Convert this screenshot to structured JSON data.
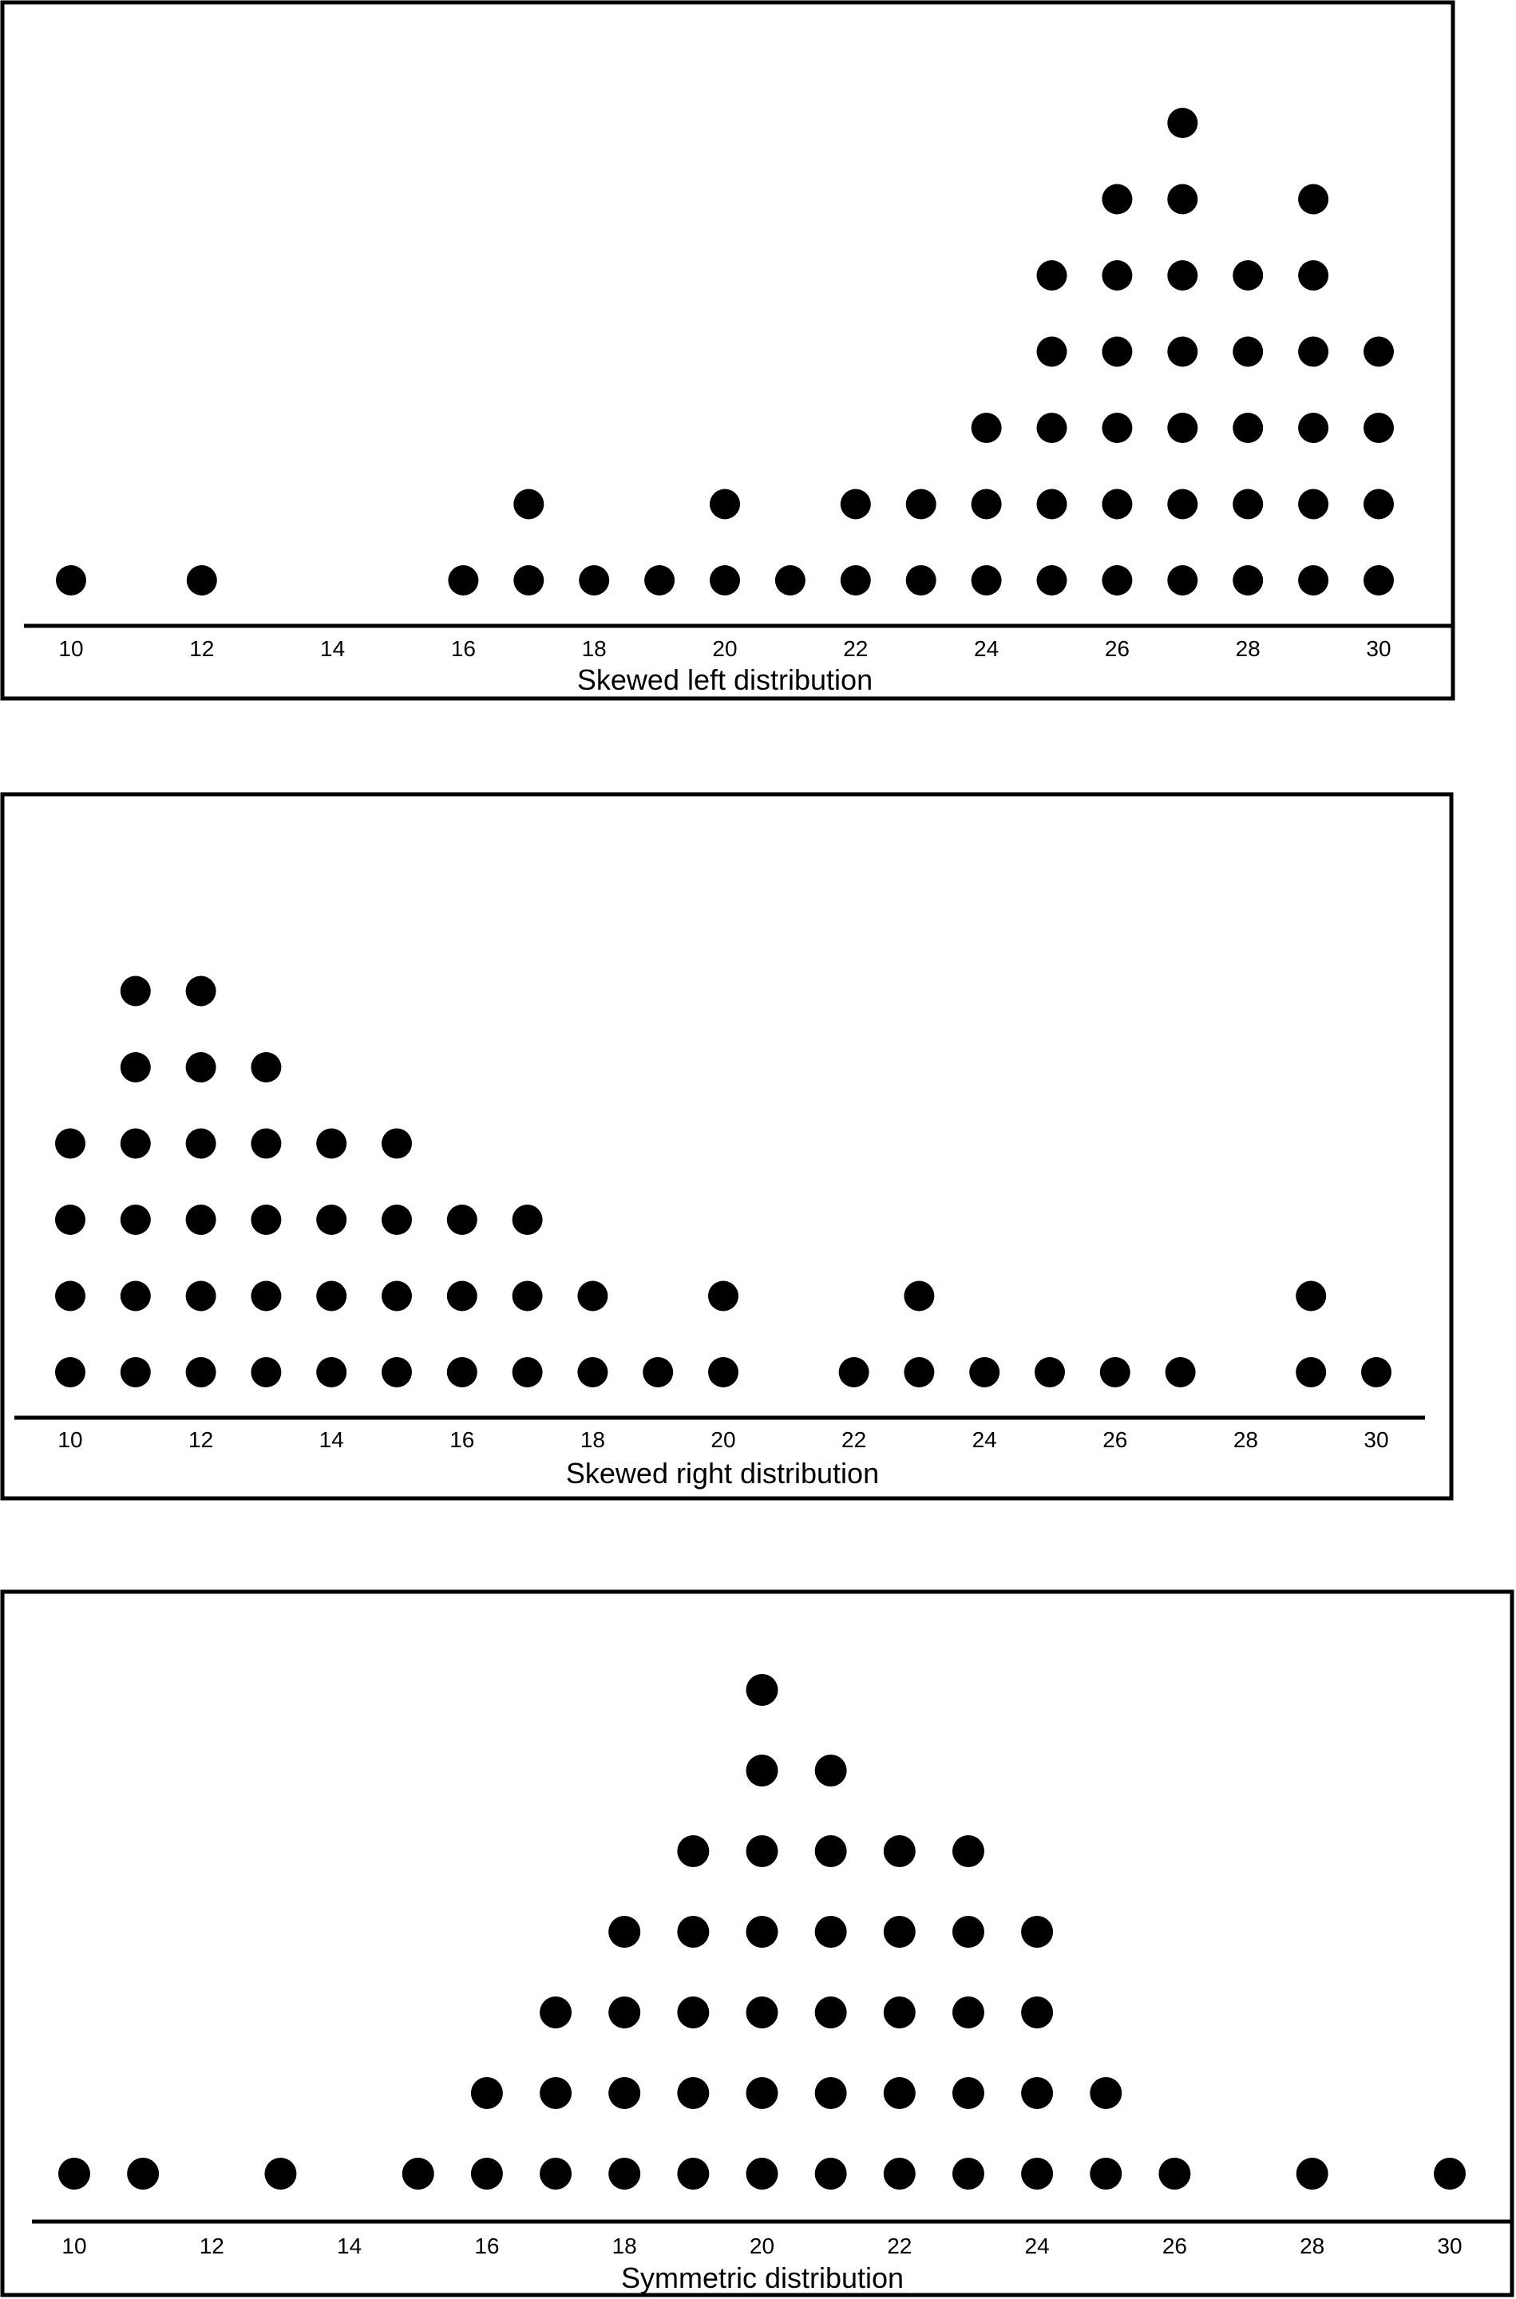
{
  "chart_data": [
    {
      "type": "scatter",
      "chart_style": "dot plot",
      "title": "",
      "xlabel": "Skewed left distribution",
      "ylabel": "",
      "xlim": [
        10,
        30
      ],
      "x_ticks": [
        10,
        12,
        14,
        16,
        18,
        20,
        22,
        24,
        26,
        28,
        30
      ],
      "grid": false,
      "legend": "none",
      "dot_color": "#000000",
      "counts": [
        {
          "x": 10,
          "count": 1
        },
        {
          "x": 12,
          "count": 1
        },
        {
          "x": 16,
          "count": 1
        },
        {
          "x": 17,
          "count": 2
        },
        {
          "x": 18,
          "count": 1
        },
        {
          "x": 19,
          "count": 1
        },
        {
          "x": 20,
          "count": 2
        },
        {
          "x": 21,
          "count": 1
        },
        {
          "x": 22,
          "count": 2
        },
        {
          "x": 23,
          "count": 2
        },
        {
          "x": 24,
          "count": 3
        },
        {
          "x": 25,
          "count": 5
        },
        {
          "x": 26,
          "count": 6
        },
        {
          "x": 27,
          "count": 7
        },
        {
          "x": 28,
          "count": 5
        },
        {
          "x": 29,
          "count": 6
        },
        {
          "x": 30,
          "count": 4
        }
      ]
    },
    {
      "type": "scatter",
      "chart_style": "dot plot",
      "title": "",
      "xlabel": "Skewed right distribution",
      "ylabel": "",
      "xlim": [
        10,
        30
      ],
      "x_ticks": [
        10,
        12,
        14,
        16,
        18,
        20,
        22,
        24,
        26,
        28,
        30
      ],
      "grid": false,
      "legend": "none",
      "dot_color": "#000000",
      "counts": [
        {
          "x": 10,
          "count": 4
        },
        {
          "x": 11,
          "count": 6
        },
        {
          "x": 12,
          "count": 6
        },
        {
          "x": 13,
          "count": 5
        },
        {
          "x": 14,
          "count": 4
        },
        {
          "x": 15,
          "count": 4
        },
        {
          "x": 16,
          "count": 3
        },
        {
          "x": 17,
          "count": 3
        },
        {
          "x": 18,
          "count": 2
        },
        {
          "x": 19,
          "count": 1
        },
        {
          "x": 20,
          "count": 2
        },
        {
          "x": 22,
          "count": 1
        },
        {
          "x": 23,
          "count": 2
        },
        {
          "x": 24,
          "count": 1
        },
        {
          "x": 25,
          "count": 1
        },
        {
          "x": 26,
          "count": 1
        },
        {
          "x": 27,
          "count": 1
        },
        {
          "x": 29,
          "count": 2
        },
        {
          "x": 30,
          "count": 1
        }
      ]
    },
    {
      "type": "scatter",
      "chart_style": "dot plot",
      "title": "",
      "xlabel": "Symmetric distribution",
      "ylabel": "",
      "xlim": [
        10,
        30
      ],
      "x_ticks": [
        10,
        12,
        14,
        16,
        18,
        20,
        22,
        24,
        26,
        28,
        30
      ],
      "grid": false,
      "legend": "none",
      "dot_color": "#000000",
      "counts": [
        {
          "x": 10,
          "count": 1
        },
        {
          "x": 11,
          "count": 1
        },
        {
          "x": 13,
          "count": 1
        },
        {
          "x": 15,
          "count": 1
        },
        {
          "x": 16,
          "count": 2
        },
        {
          "x": 17,
          "count": 3
        },
        {
          "x": 18,
          "count": 4
        },
        {
          "x": 19,
          "count": 5
        },
        {
          "x": 20,
          "count": 7
        },
        {
          "x": 21,
          "count": 6
        },
        {
          "x": 22,
          "count": 5
        },
        {
          "x": 23,
          "count": 5
        },
        {
          "x": 24,
          "count": 4
        },
        {
          "x": 25,
          "count": 2
        },
        {
          "x": 26,
          "count": 1
        },
        {
          "x": 28,
          "count": 1
        },
        {
          "x": 30,
          "count": 1
        }
      ]
    }
  ]
}
